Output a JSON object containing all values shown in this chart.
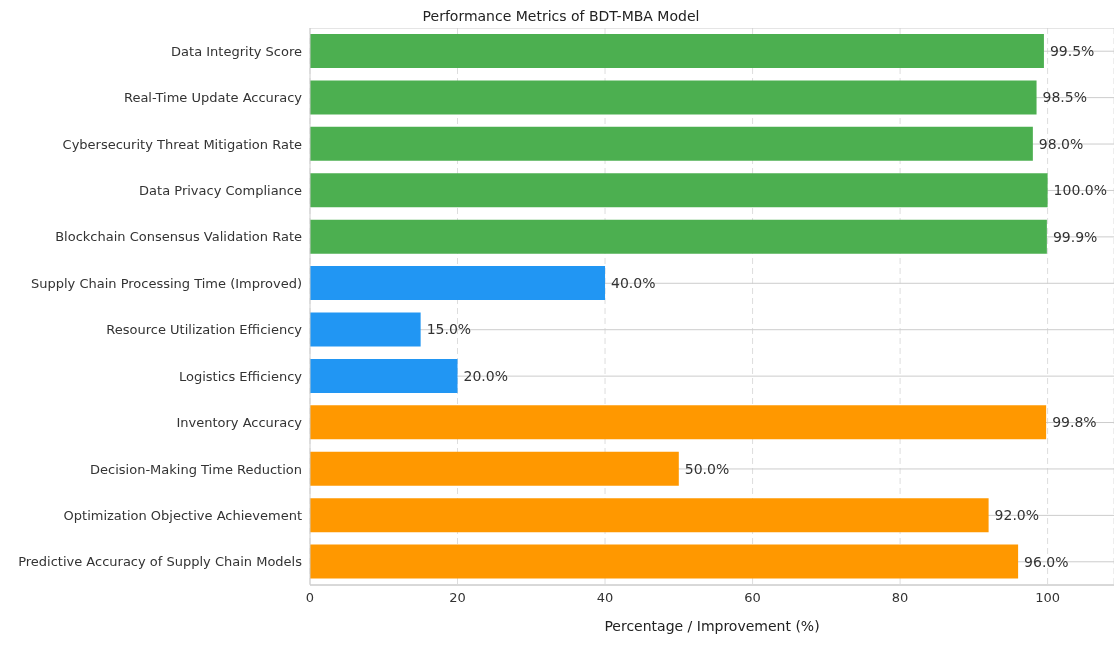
{
  "chart_data": {
    "type": "bar",
    "orientation": "horizontal",
    "title": "Performance Metrics of BDT-MBA Model",
    "xlabel": "Percentage / Improvement (%)",
    "categories": [
      "Data Integrity Score",
      "Real-Time Update Accuracy",
      "Cybersecurity Threat Mitigation Rate",
      "Data Privacy Compliance",
      "Blockchain Consensus Validation Rate",
      "Supply Chain Processing Time (Improved)",
      "Resource Utilization Efficiency",
      "Logistics Efficiency",
      "Inventory Accuracy",
      "Decision-Making Time Reduction",
      "Optimization Objective Achievement",
      "Predictive Accuracy of Supply Chain Models"
    ],
    "values": [
      99.5,
      98.5,
      98.0,
      100.0,
      99.9,
      40.0,
      15.0,
      20.0,
      99.8,
      50.0,
      92.0,
      96.0
    ],
    "colors": [
      "#4caf50",
      "#4caf50",
      "#4caf50",
      "#4caf50",
      "#4caf50",
      "#2196f3",
      "#2196f3",
      "#2196f3",
      "#ff9800",
      "#ff9800",
      "#ff9800",
      "#ff9800"
    ],
    "value_labels": [
      "99.5%",
      "98.5%",
      "98.0%",
      "100.0%",
      "99.9%",
      "40.0%",
      "15.0%",
      "20.0%",
      "99.8%",
      "50.0%",
      "92.0%",
      "96.0%"
    ],
    "xlim": [
      0,
      109
    ],
    "xticks": [
      0,
      20,
      40,
      60,
      80,
      100
    ],
    "grid": true
  }
}
